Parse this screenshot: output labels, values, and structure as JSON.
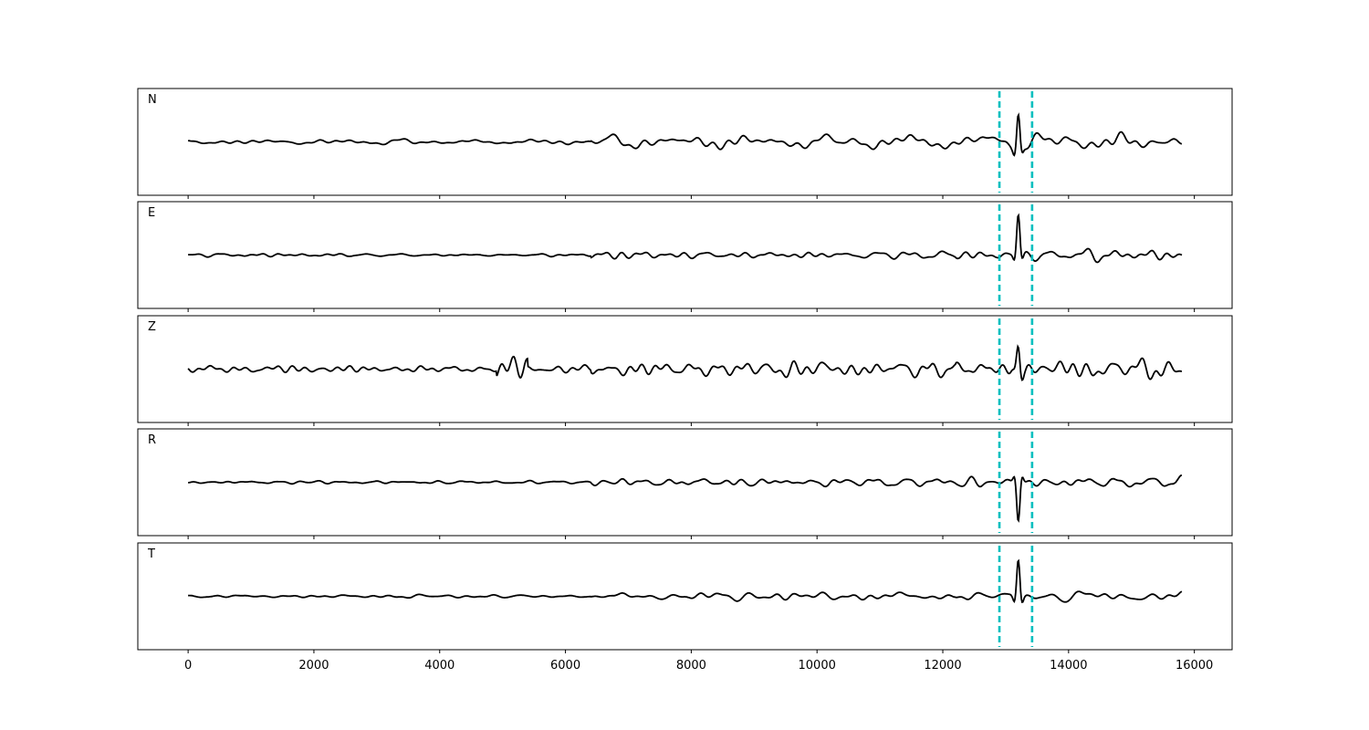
{
  "chart_data": {
    "type": "line",
    "panels": [
      {
        "label": "N",
        "amp": 1.0,
        "peak": 1.45,
        "seed": 11
      },
      {
        "label": "E",
        "amp": 0.55,
        "peak": 1.65,
        "seed": 23
      },
      {
        "label": "Z",
        "amp": 1.55,
        "peak": 1.0,
        "seed": 37
      },
      {
        "label": "R",
        "amp": 0.6,
        "peak": 1.65,
        "seed": 51
      },
      {
        "label": "T",
        "amp": 0.6,
        "peak": 1.6,
        "seed": 67
      }
    ],
    "x_ticks": [
      "0",
      "2000",
      "4000",
      "6000",
      "8000",
      "10000",
      "12000",
      "14000",
      "16000"
    ],
    "x_tick_values": [
      0,
      2000,
      4000,
      6000,
      8000,
      10000,
      12000,
      14000,
      16000
    ],
    "xlim": [
      -800,
      16600
    ],
    "x_max_sample": 15800,
    "markers": [
      12900,
      13420
    ],
    "colors": {
      "trace": "#000000",
      "marker": "#00bfbf",
      "frame": "#000000"
    },
    "grid": false,
    "legend": false
  }
}
